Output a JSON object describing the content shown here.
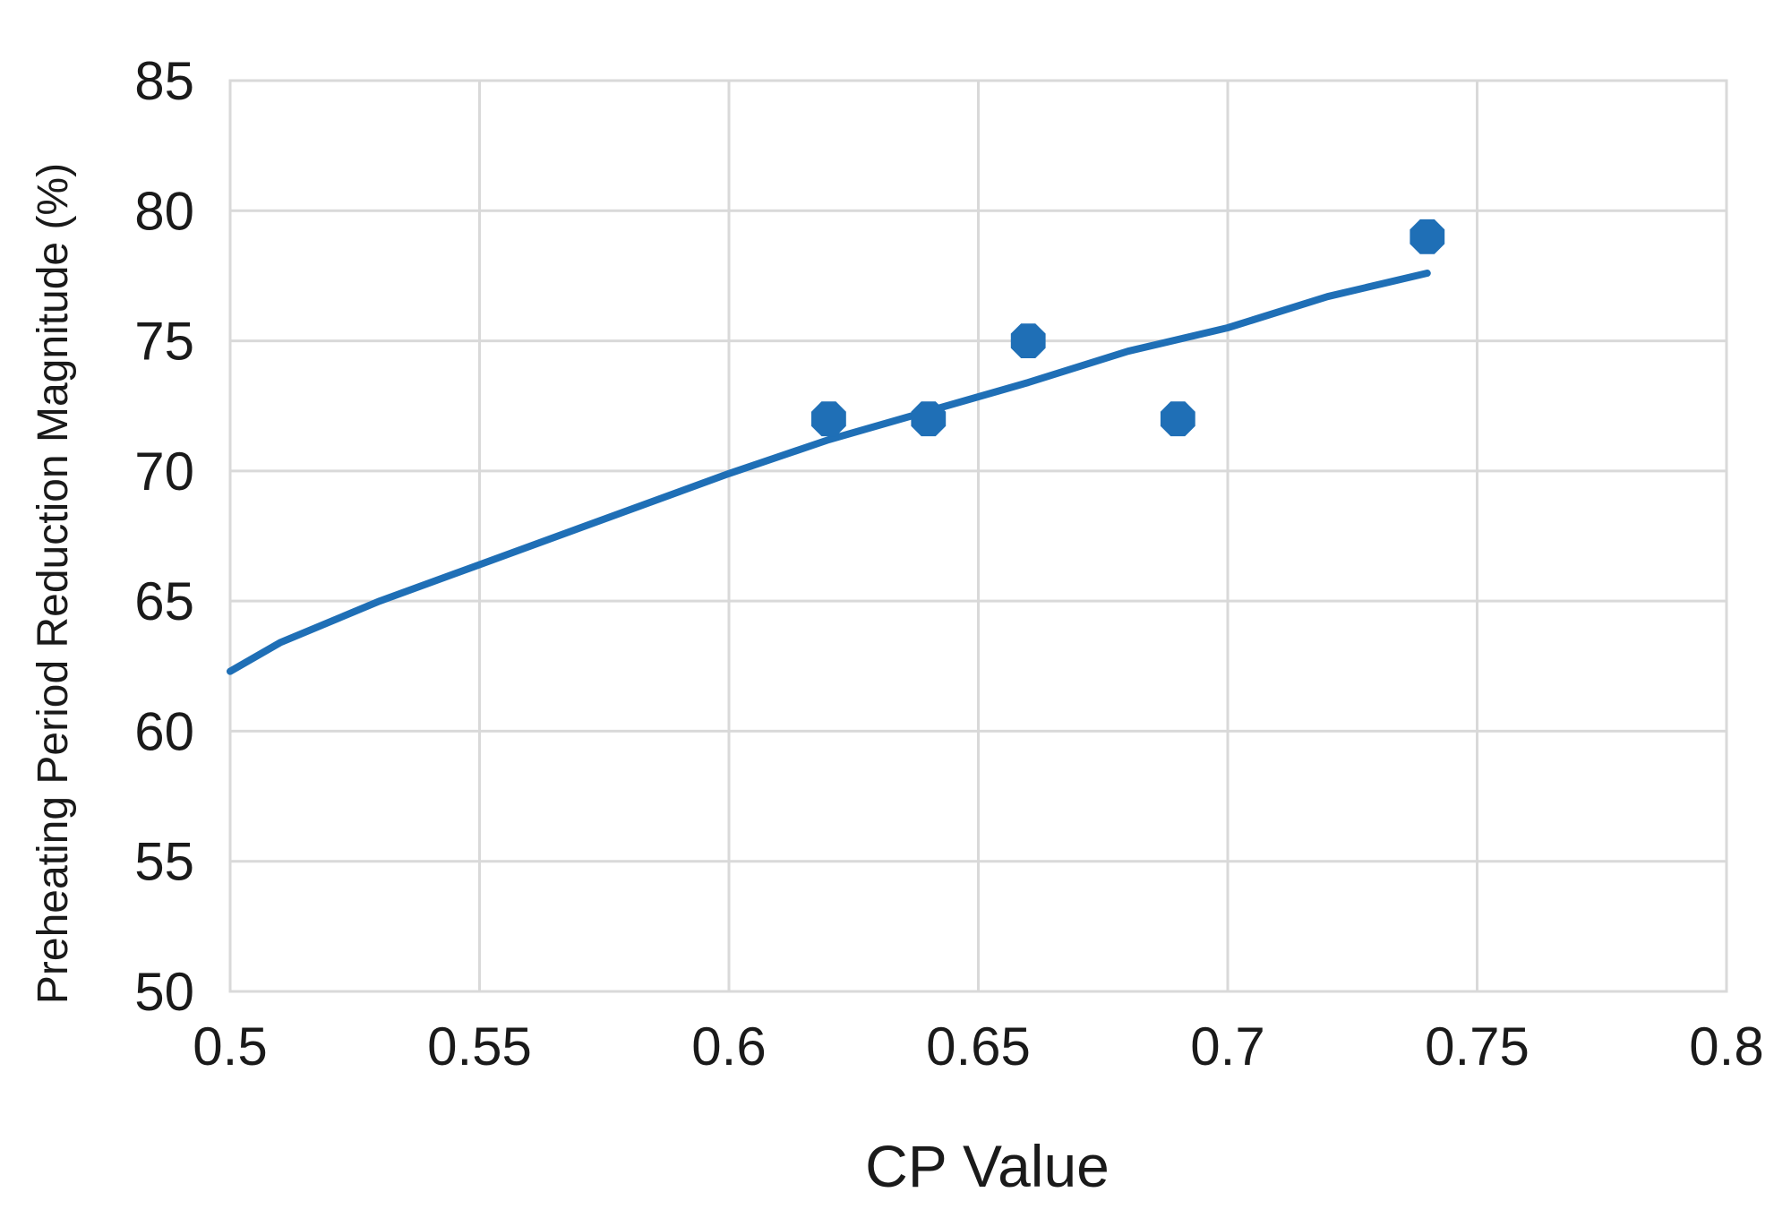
{
  "chart_data": {
    "type": "scatter",
    "title": "",
    "xlabel": "CP Value",
    "ylabel": "Preheating Period Reduction Magnitude (%)",
    "xlim": [
      0.5,
      0.8
    ],
    "ylim": [
      50,
      85
    ],
    "x_ticks": [
      "0.5",
      "0.55",
      "0.6",
      "0.65",
      "0.7",
      "0.75",
      "0.8"
    ],
    "y_ticks": [
      "50",
      "55",
      "60",
      "65",
      "70",
      "75",
      "80",
      "85"
    ],
    "grid": true,
    "legend": "none",
    "colors": {
      "series": "#1f6fb6",
      "grid": "#d9d9d9"
    },
    "points": {
      "x": [
        0.62,
        0.64,
        0.66,
        0.69,
        0.74
      ],
      "y": [
        72,
        72,
        75,
        72,
        79
      ]
    },
    "trendline": {
      "x": [
        0.5,
        0.51,
        0.53,
        0.55,
        0.57,
        0.59,
        0.6,
        0.62,
        0.64,
        0.66,
        0.68,
        0.7,
        0.72,
        0.74
      ],
      "y": [
        62.3,
        63.4,
        65.0,
        66.4,
        67.8,
        69.2,
        69.9,
        71.2,
        72.3,
        73.4,
        74.6,
        75.5,
        76.7,
        77.6
      ]
    }
  }
}
